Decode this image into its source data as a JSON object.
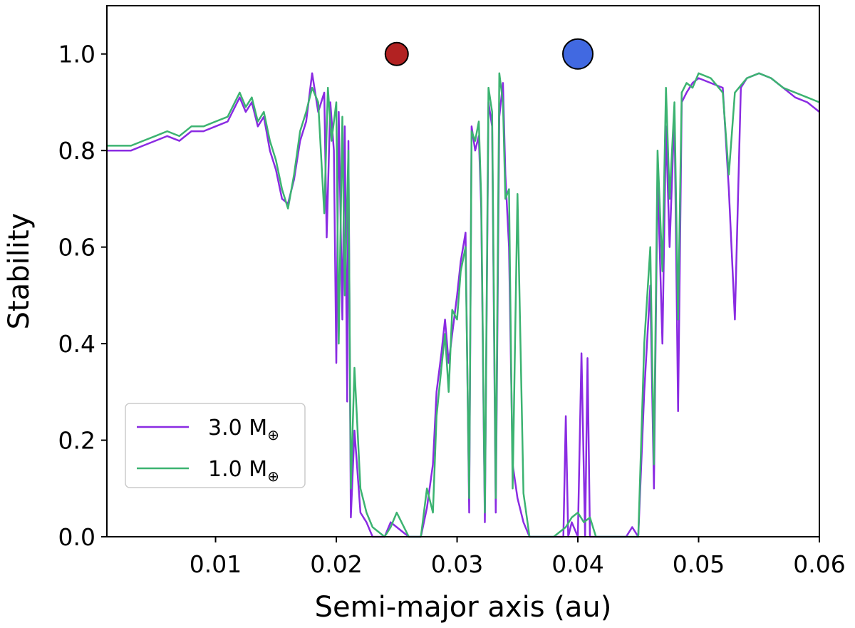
{
  "chart_data": {
    "type": "line",
    "xlabel": "Semi-major axis (au)",
    "ylabel": "Stability",
    "xlim": [
      0.001,
      0.06
    ],
    "ylim": [
      0.0,
      1.1
    ],
    "xticks": [
      0.01,
      0.02,
      0.03,
      0.04,
      0.05,
      0.06
    ],
    "xtick_labels": [
      "0.01",
      "0.02",
      "0.03",
      "0.04",
      "0.05",
      "0.06"
    ],
    "yticks": [
      0.0,
      0.2,
      0.4,
      0.6,
      0.8,
      1.0
    ],
    "ytick_labels": [
      "0.0",
      "0.2",
      "0.4",
      "0.6",
      "0.8",
      "1.0"
    ],
    "grid": false,
    "legend_position": "lower-left",
    "markers": [
      {
        "x": 0.025,
        "y": 1.0,
        "color": "#b22222",
        "size": "small"
      },
      {
        "x": 0.04,
        "y": 1.0,
        "color": "#4169e1",
        "size": "large"
      }
    ],
    "series": [
      {
        "name": "3.0 M",
        "subscript": "⊕",
        "color": "#8a2be2",
        "points": [
          [
            0.001,
            0.8
          ],
          [
            0.002,
            0.8
          ],
          [
            0.003,
            0.8
          ],
          [
            0.004,
            0.81
          ],
          [
            0.005,
            0.82
          ],
          [
            0.006,
            0.83
          ],
          [
            0.007,
            0.82
          ],
          [
            0.008,
            0.84
          ],
          [
            0.009,
            0.84
          ],
          [
            0.01,
            0.85
          ],
          [
            0.011,
            0.86
          ],
          [
            0.012,
            0.91
          ],
          [
            0.0125,
            0.88
          ],
          [
            0.013,
            0.9
          ],
          [
            0.0135,
            0.85
          ],
          [
            0.014,
            0.87
          ],
          [
            0.0145,
            0.8
          ],
          [
            0.015,
            0.76
          ],
          [
            0.0155,
            0.7
          ],
          [
            0.016,
            0.69
          ],
          [
            0.0165,
            0.74
          ],
          [
            0.017,
            0.82
          ],
          [
            0.0175,
            0.86
          ],
          [
            0.018,
            0.96
          ],
          [
            0.0185,
            0.88
          ],
          [
            0.019,
            0.92
          ],
          [
            0.0192,
            0.62
          ],
          [
            0.0195,
            0.9
          ],
          [
            0.0198,
            0.8
          ],
          [
            0.02,
            0.36
          ],
          [
            0.0202,
            0.88
          ],
          [
            0.0205,
            0.45
          ],
          [
            0.0207,
            0.85
          ],
          [
            0.0209,
            0.28
          ],
          [
            0.021,
            0.82
          ],
          [
            0.0212,
            0.04
          ],
          [
            0.0215,
            0.22
          ],
          [
            0.022,
            0.05
          ],
          [
            0.0225,
            0.03
          ],
          [
            0.023,
            0.0
          ],
          [
            0.024,
            0.0
          ],
          [
            0.0245,
            0.03
          ],
          [
            0.025,
            0.02
          ],
          [
            0.026,
            0.0
          ],
          [
            0.027,
            0.0
          ],
          [
            0.0275,
            0.06
          ],
          [
            0.028,
            0.15
          ],
          [
            0.0283,
            0.3
          ],
          [
            0.0287,
            0.38
          ],
          [
            0.029,
            0.45
          ],
          [
            0.0293,
            0.36
          ],
          [
            0.0296,
            0.42
          ],
          [
            0.03,
            0.5
          ],
          [
            0.0303,
            0.57
          ],
          [
            0.0307,
            0.63
          ],
          [
            0.031,
            0.05
          ],
          [
            0.0312,
            0.85
          ],
          [
            0.0315,
            0.8
          ],
          [
            0.0318,
            0.83
          ],
          [
            0.032,
            0.68
          ],
          [
            0.0323,
            0.03
          ],
          [
            0.0326,
            0.9
          ],
          [
            0.0329,
            0.85
          ],
          [
            0.0332,
            0.05
          ],
          [
            0.0335,
            0.87
          ],
          [
            0.0338,
            0.94
          ],
          [
            0.034,
            0.75
          ],
          [
            0.0343,
            0.6
          ],
          [
            0.0346,
            0.15
          ],
          [
            0.035,
            0.08
          ],
          [
            0.0355,
            0.03
          ],
          [
            0.036,
            0.0
          ],
          [
            0.037,
            0.0
          ],
          [
            0.038,
            0.0
          ],
          [
            0.0388,
            0.0
          ],
          [
            0.039,
            0.25
          ],
          [
            0.0392,
            0.0
          ],
          [
            0.0395,
            0.03
          ],
          [
            0.04,
            0.0
          ],
          [
            0.0403,
            0.38
          ],
          [
            0.0406,
            0.0
          ],
          [
            0.0408,
            0.37
          ],
          [
            0.041,
            0.0
          ],
          [
            0.042,
            0.0
          ],
          [
            0.043,
            0.0
          ],
          [
            0.044,
            0.0
          ],
          [
            0.0445,
            0.02
          ],
          [
            0.045,
            0.0
          ],
          [
            0.0455,
            0.3
          ],
          [
            0.046,
            0.52
          ],
          [
            0.0463,
            0.1
          ],
          [
            0.0466,
            0.75
          ],
          [
            0.047,
            0.4
          ],
          [
            0.0473,
            0.85
          ],
          [
            0.0476,
            0.6
          ],
          [
            0.048,
            0.88
          ],
          [
            0.0483,
            0.26
          ],
          [
            0.0486,
            0.9
          ],
          [
            0.049,
            0.92
          ],
          [
            0.0495,
            0.94
          ],
          [
            0.05,
            0.95
          ],
          [
            0.051,
            0.94
          ],
          [
            0.052,
            0.93
          ],
          [
            0.0525,
            0.72
          ],
          [
            0.053,
            0.45
          ],
          [
            0.0535,
            0.93
          ],
          [
            0.054,
            0.95
          ],
          [
            0.055,
            0.96
          ],
          [
            0.056,
            0.95
          ],
          [
            0.057,
            0.93
          ],
          [
            0.058,
            0.91
          ],
          [
            0.059,
            0.9
          ],
          [
            0.06,
            0.88
          ]
        ]
      },
      {
        "name": "1.0 M",
        "subscript": "⊕",
        "color": "#3cb371",
        "points": [
          [
            0.001,
            0.81
          ],
          [
            0.002,
            0.81
          ],
          [
            0.003,
            0.81
          ],
          [
            0.004,
            0.82
          ],
          [
            0.005,
            0.83
          ],
          [
            0.006,
            0.84
          ],
          [
            0.007,
            0.83
          ],
          [
            0.008,
            0.85
          ],
          [
            0.009,
            0.85
          ],
          [
            0.01,
            0.86
          ],
          [
            0.011,
            0.87
          ],
          [
            0.012,
            0.92
          ],
          [
            0.0125,
            0.89
          ],
          [
            0.013,
            0.91
          ],
          [
            0.0135,
            0.86
          ],
          [
            0.014,
            0.88
          ],
          [
            0.0145,
            0.82
          ],
          [
            0.015,
            0.78
          ],
          [
            0.0155,
            0.72
          ],
          [
            0.016,
            0.68
          ],
          [
            0.0165,
            0.75
          ],
          [
            0.017,
            0.84
          ],
          [
            0.0175,
            0.88
          ],
          [
            0.018,
            0.93
          ],
          [
            0.0185,
            0.9
          ],
          [
            0.019,
            0.67
          ],
          [
            0.0193,
            0.93
          ],
          [
            0.0196,
            0.82
          ],
          [
            0.02,
            0.9
          ],
          [
            0.0202,
            0.4
          ],
          [
            0.0205,
            0.87
          ],
          [
            0.0207,
            0.5
          ],
          [
            0.021,
            0.8
          ],
          [
            0.0212,
            0.1
          ],
          [
            0.0215,
            0.35
          ],
          [
            0.022,
            0.1
          ],
          [
            0.0225,
            0.05
          ],
          [
            0.023,
            0.02
          ],
          [
            0.024,
            0.0
          ],
          [
            0.0245,
            0.02
          ],
          [
            0.025,
            0.05
          ],
          [
            0.026,
            0.0
          ],
          [
            0.027,
            0.0
          ],
          [
            0.0275,
            0.1
          ],
          [
            0.028,
            0.05
          ],
          [
            0.0283,
            0.25
          ],
          [
            0.0287,
            0.35
          ],
          [
            0.029,
            0.42
          ],
          [
            0.0293,
            0.3
          ],
          [
            0.0296,
            0.47
          ],
          [
            0.03,
            0.45
          ],
          [
            0.0303,
            0.55
          ],
          [
            0.0307,
            0.6
          ],
          [
            0.031,
            0.08
          ],
          [
            0.0312,
            0.84
          ],
          [
            0.0315,
            0.82
          ],
          [
            0.0318,
            0.86
          ],
          [
            0.032,
            0.7
          ],
          [
            0.0323,
            0.05
          ],
          [
            0.0326,
            0.93
          ],
          [
            0.0329,
            0.88
          ],
          [
            0.0332,
            0.08
          ],
          [
            0.0335,
            0.96
          ],
          [
            0.0338,
            0.9
          ],
          [
            0.034,
            0.7
          ],
          [
            0.0343,
            0.72
          ],
          [
            0.0346,
            0.1
          ],
          [
            0.035,
            0.71
          ],
          [
            0.0355,
            0.09
          ],
          [
            0.036,
            0.0
          ],
          [
            0.037,
            0.0
          ],
          [
            0.038,
            0.0
          ],
          [
            0.039,
            0.02
          ],
          [
            0.0395,
            0.04
          ],
          [
            0.04,
            0.05
          ],
          [
            0.0405,
            0.03
          ],
          [
            0.041,
            0.04
          ],
          [
            0.0415,
            0.0
          ],
          [
            0.042,
            0.0
          ],
          [
            0.043,
            0.0
          ],
          [
            0.044,
            0.0
          ],
          [
            0.045,
            0.0
          ],
          [
            0.0455,
            0.4
          ],
          [
            0.046,
            0.6
          ],
          [
            0.0463,
            0.15
          ],
          [
            0.0466,
            0.8
          ],
          [
            0.047,
            0.55
          ],
          [
            0.0473,
            0.93
          ],
          [
            0.0476,
            0.7
          ],
          [
            0.048,
            0.9
          ],
          [
            0.0483,
            0.45
          ],
          [
            0.0486,
            0.92
          ],
          [
            0.049,
            0.94
          ],
          [
            0.0495,
            0.93
          ],
          [
            0.05,
            0.96
          ],
          [
            0.051,
            0.95
          ],
          [
            0.052,
            0.92
          ],
          [
            0.0525,
            0.75
          ],
          [
            0.053,
            0.92
          ],
          [
            0.054,
            0.95
          ],
          [
            0.055,
            0.96
          ],
          [
            0.056,
            0.95
          ],
          [
            0.057,
            0.93
          ],
          [
            0.058,
            0.92
          ],
          [
            0.059,
            0.91
          ],
          [
            0.06,
            0.9
          ]
        ]
      }
    ]
  }
}
